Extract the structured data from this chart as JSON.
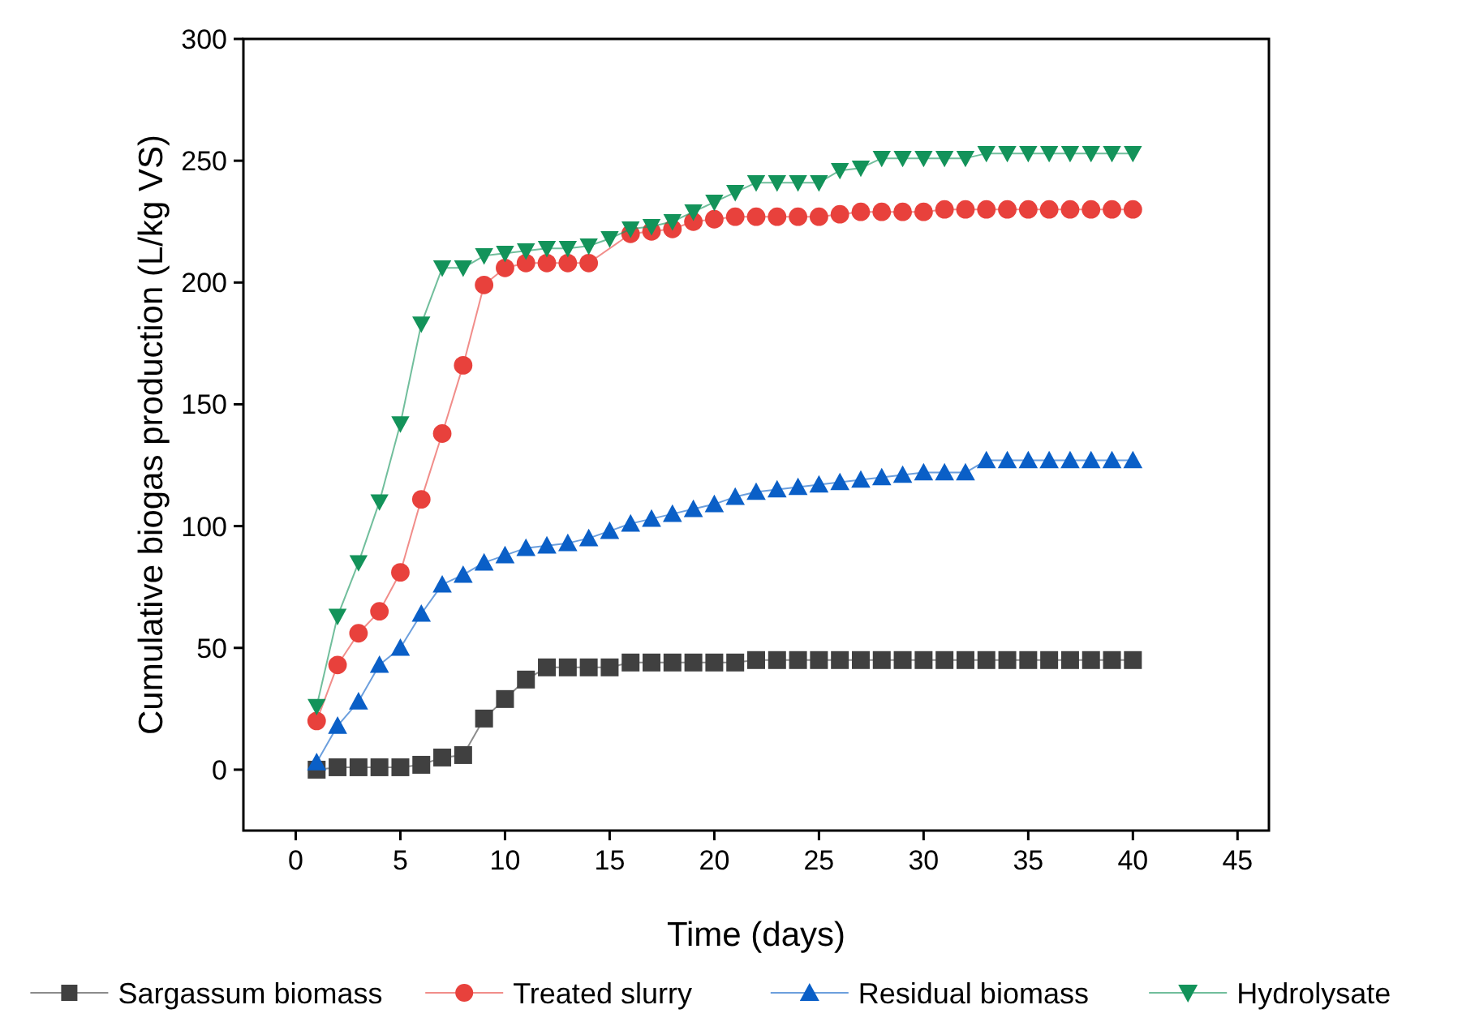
{
  "chart_data": {
    "type": "line",
    "xlabel": "Time (days)",
    "ylabel": "Cumulative biogas production (L/kg VS)",
    "x": [
      1,
      2,
      3,
      4,
      5,
      6,
      7,
      8,
      9,
      10,
      11,
      12,
      13,
      14,
      15,
      16,
      17,
      18,
      19,
      20,
      21,
      22,
      23,
      24,
      25,
      26,
      27,
      28,
      29,
      30,
      31,
      32,
      33,
      34,
      35,
      36,
      37,
      38,
      39,
      40
    ],
    "series": [
      {
        "name": "Sargassum biomass",
        "color": "#404040",
        "marker": "square",
        "values": [
          0,
          1,
          1,
          1,
          1,
          2,
          5,
          6,
          21,
          29,
          37,
          42,
          42,
          42,
          42,
          44,
          44,
          44,
          44,
          44,
          44,
          45,
          45,
          45,
          45,
          45,
          45,
          45,
          45,
          45,
          45,
          45,
          45,
          45,
          45,
          45,
          45,
          45,
          45,
          45
        ]
      },
      {
        "name": "Treated slurry",
        "color": "#e8413c",
        "marker": "circle",
        "values": [
          20,
          43,
          56,
          65,
          81,
          111,
          138,
          166,
          199,
          206,
          208,
          208,
          208,
          208,
          null,
          220,
          221,
          222,
          225,
          226,
          227,
          227,
          227,
          227,
          227,
          228,
          229,
          229,
          229,
          229,
          230,
          230,
          230,
          230,
          230,
          230,
          230,
          230,
          230,
          230
        ]
      },
      {
        "name": "Residual biomass",
        "color": "#0a5fc7",
        "marker": "triangle",
        "values": [
          3,
          18,
          28,
          43,
          50,
          64,
          76,
          80,
          85,
          88,
          91,
          92,
          93,
          95,
          98,
          101,
          103,
          105,
          107,
          109,
          112,
          114,
          115,
          116,
          117,
          118,
          119,
          120,
          121,
          122,
          122,
          122,
          127,
          127,
          127,
          127,
          127,
          127,
          127,
          127
        ]
      },
      {
        "name": "Hydrolysate",
        "color": "#13935a",
        "marker": "triangle-down",
        "values": [
          26,
          63,
          85,
          110,
          142,
          183,
          206,
          206,
          211,
          212,
          213,
          214,
          214,
          215,
          218,
          222,
          223,
          225,
          229,
          233,
          237,
          241,
          241,
          241,
          241,
          246,
          247,
          251,
          251,
          251,
          251,
          251,
          253,
          253,
          253,
          253,
          253,
          253,
          253,
          253
        ]
      }
    ],
    "xlim": [
      -2.5,
      46.5
    ],
    "xticks": [
      0,
      5,
      10,
      15,
      20,
      25,
      30,
      35,
      40,
      45
    ],
    "ylim": [
      -25,
      300
    ],
    "yticks": [
      0,
      50,
      100,
      150,
      200,
      250,
      300
    ],
    "grid": false,
    "legend": "bottom",
    "line_style": "solid"
  }
}
